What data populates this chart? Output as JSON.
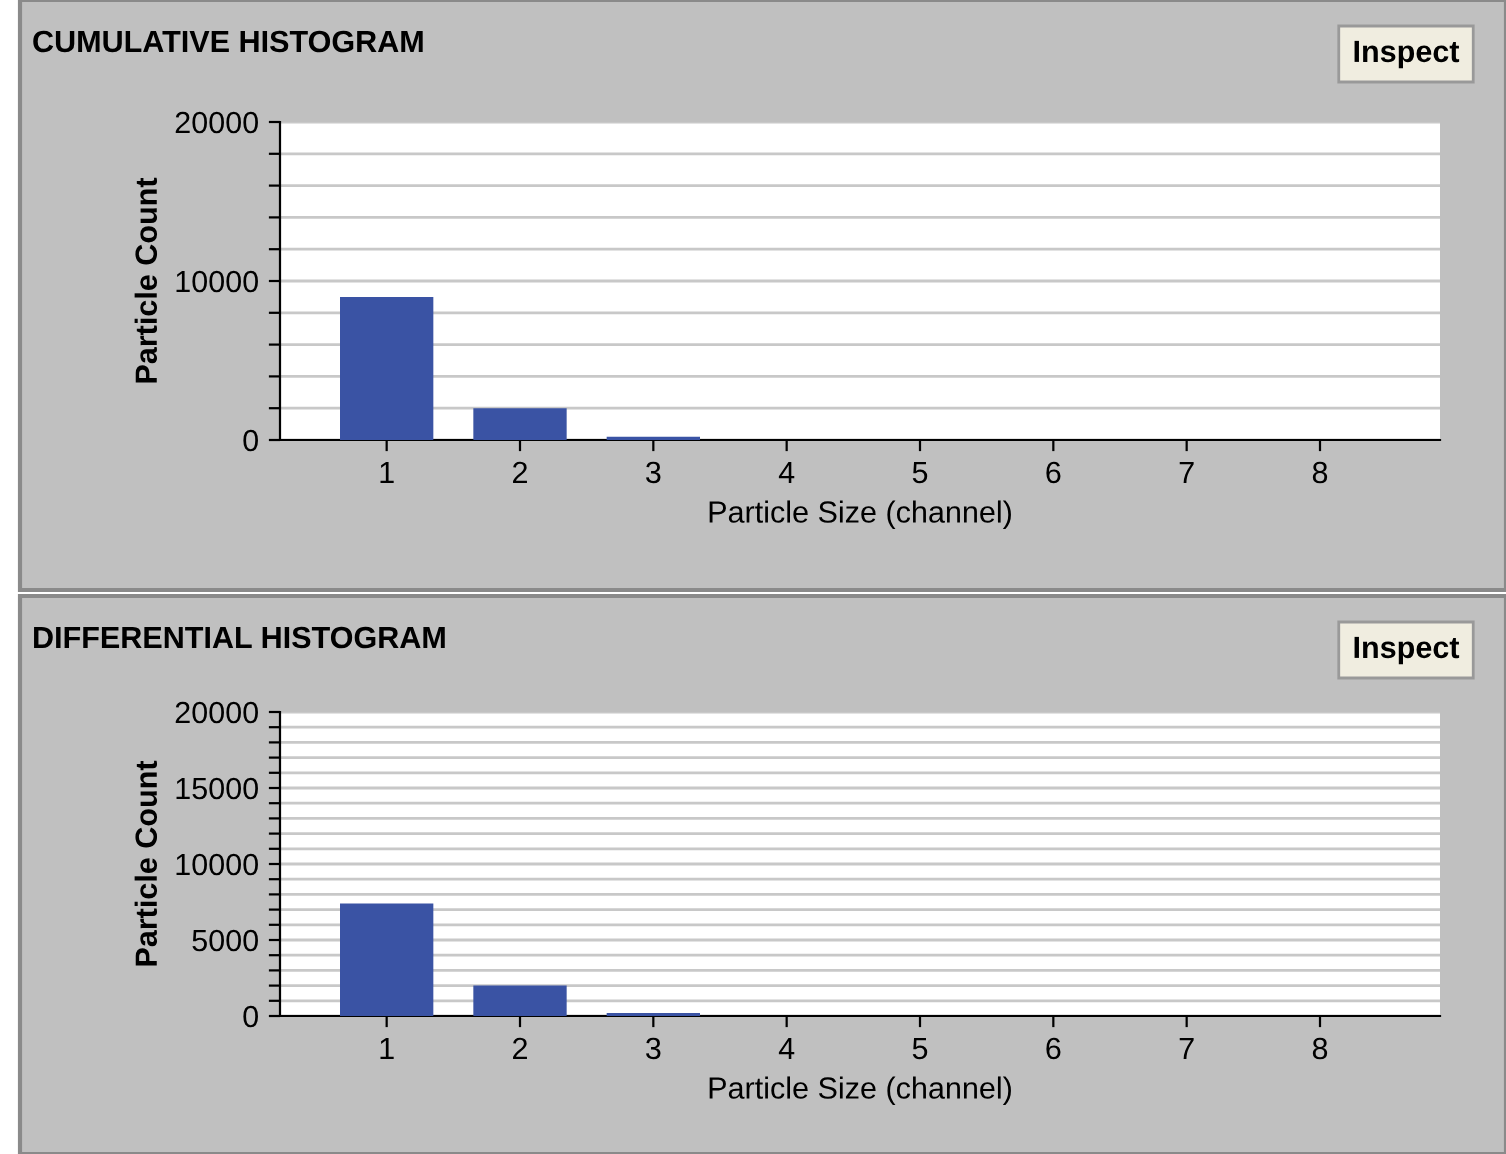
{
  "chart_data": [
    {
      "type": "bar",
      "title": "CUMULATIVE HISTOGRAM",
      "xlabel": "Particle Size (channel)",
      "ylabel": "Particle Count",
      "annotations": [
        "Inspect"
      ],
      "categories": [
        "1",
        "2",
        "3",
        "4",
        "5",
        "6",
        "7",
        "8"
      ],
      "series": [
        {
          "color": "#3a53a4",
          "values": [
            9000,
            2000,
            200,
            0,
            0,
            0,
            0,
            0
          ]
        }
      ],
      "ylim": [
        0,
        20000
      ],
      "yticks": [
        0,
        {
          "value": 2000,
          "label": null
        },
        {
          "value": 4000,
          "label": null
        },
        {
          "value": 6000,
          "label": null
        },
        {
          "value": 8000,
          "label": null
        },
        10000,
        {
          "value": 12000,
          "label": null
        },
        {
          "value": 14000,
          "label": null
        },
        {
          "value": 16000,
          "label": null
        },
        {
          "value": 18000,
          "label": null
        },
        20000
      ],
      "grid": "y"
    },
    {
      "type": "bar",
      "title": "DIFFERENTIAL HISTOGRAM",
      "xlabel": "Particle Size (channel)",
      "ylabel": "Particle Count",
      "annotations": [
        "Inspect"
      ],
      "categories": [
        "1",
        "2",
        "3",
        "4",
        "5",
        "6",
        "7",
        "8"
      ],
      "series": [
        {
          "color": "#3a53a4",
          "values": [
            7400,
            2000,
            200,
            0,
            0,
            0,
            0,
            0
          ]
        }
      ],
      "ylim": [
        0,
        20000
      ],
      "yticks": [
        0,
        {
          "value": 1000,
          "label": null
        },
        {
          "value": 2000,
          "label": null
        },
        {
          "value": 3000,
          "label": null
        },
        {
          "value": 4000,
          "label": null
        },
        5000,
        {
          "value": 6000,
          "label": null
        },
        {
          "value": 7000,
          "label": null
        },
        {
          "value": 8000,
          "label": null
        },
        {
          "value": 9000,
          "label": null
        },
        10000,
        {
          "value": 11000,
          "label": null
        },
        {
          "value": 12000,
          "label": null
        },
        {
          "value": 13000,
          "label": null
        },
        {
          "value": 14000,
          "label": null
        },
        15000,
        {
          "value": 16000,
          "label": null
        },
        {
          "value": 17000,
          "label": null
        },
        {
          "value": 18000,
          "label": null
        },
        {
          "value": 19000,
          "label": null
        },
        20000
      ],
      "grid": "y"
    }
  ]
}
